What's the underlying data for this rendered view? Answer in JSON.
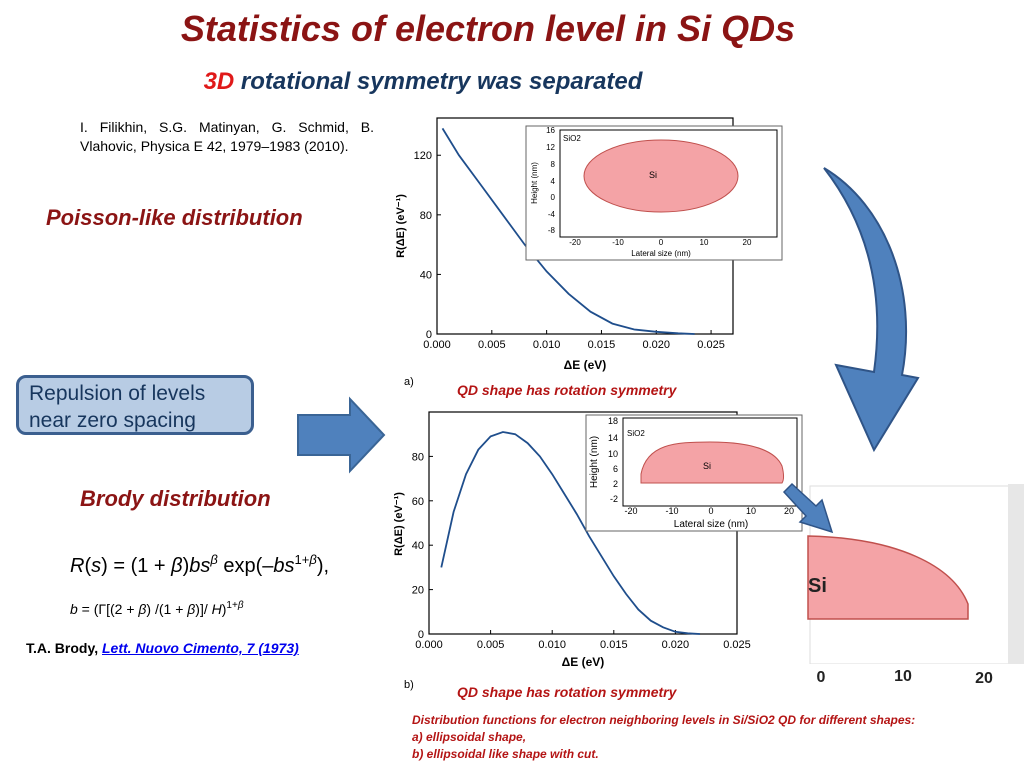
{
  "title": "Statistics of electron level in Si QDs",
  "subtitle": {
    "part1": "3D",
    "part2": "rotational symmetry  was separated"
  },
  "citation": "I. Filikhin, S.G. Matinyan, G. Schmid, B. Vlahovic, Physica E 42, 1979–1983 (2010).",
  "poisson_label": "Poisson-like distribution",
  "repulsion_label": "Repulsion of levels near zero spacing",
  "brody_label": "Brody distribution",
  "formula1": "R(s) = (1 + β)bs^β exp(–bs^(1+β)),",
  "formula2": "b = (Γ[(2 + β)/(1 + β)]/H)^(1+β)",
  "brody_ref": {
    "author": "T.A. Brody",
    "sep": ",  ",
    "link": "Lett. Nuovo Cimento, 7 (1973)"
  },
  "shape_note_a": "QD shape has rotation  symmetry",
  "shape_note_b": "QD shape has rotation  symmetry",
  "panel_a_label": "a)",
  "panel_b_label": "b)",
  "caption": {
    "line1": "Distribution functions for electron neighboring levels in Si/SiO2 QD for different shapes:",
    "line2": "a) ellipsoidal shape,",
    "line3": "b) ellipsoidal like shape with cut."
  },
  "colors": {
    "title": "#8b1414",
    "subtitle_3d": "#e01919",
    "subtitle_rest": "#17365d",
    "curve": "#1f4e8c",
    "qd_fill": "#f4a3a6",
    "qd_stroke": "#c0504d",
    "arrow": "#4f81bd"
  },
  "chart_data": [
    {
      "type": "line",
      "panel": "a",
      "xlabel": "ΔE  (eV)",
      "ylabel": "R(ΔE) (eV⁻¹)",
      "xlim": [
        0,
        0.027
      ],
      "ylim": [
        0,
        145
      ],
      "xticks": [
        "0.000",
        "0.005",
        "0.010",
        "0.015",
        "0.020",
        "0.025"
      ],
      "yticks": [
        "0",
        "40",
        "80",
        "120"
      ],
      "x": [
        0.0005,
        0.002,
        0.004,
        0.006,
        0.008,
        0.01,
        0.012,
        0.014,
        0.016,
        0.018,
        0.02,
        0.022,
        0.0235
      ],
      "y": [
        138,
        120,
        100,
        80,
        60,
        42,
        27,
        15,
        7,
        3,
        1.5,
        0.5,
        0
      ]
    },
    {
      "type": "line",
      "panel": "b",
      "xlabel": "ΔE  (eV)",
      "ylabel": "R(ΔE) (eV⁻¹)",
      "xlim": [
        0,
        0.025
      ],
      "ylim": [
        0,
        100
      ],
      "xticks": [
        "0.000",
        "0.005",
        "0.010",
        "0.015",
        "0.020",
        "0.025"
      ],
      "yticks": [
        "0",
        "20",
        "40",
        "60",
        "80"
      ],
      "x": [
        0.001,
        0.002,
        0.003,
        0.004,
        0.005,
        0.006,
        0.007,
        0.008,
        0.009,
        0.01,
        0.011,
        0.012,
        0.013,
        0.014,
        0.015,
        0.016,
        0.017,
        0.018,
        0.019,
        0.02,
        0.021,
        0.022
      ],
      "y": [
        30,
        55,
        72,
        83,
        89,
        91,
        90,
        86,
        80,
        72,
        63,
        54,
        44,
        35,
        26,
        18,
        11,
        6,
        3,
        1,
        0.3,
        0
      ]
    }
  ],
  "inset_a": {
    "ylabel": "Height (nm)",
    "xlabel": "Lateral size (nm)",
    "yticks": [
      "16",
      "12",
      "8",
      "4",
      "0",
      "-4",
      "-8"
    ],
    "xticks": [
      "-20",
      "-10",
      "0",
      "10",
      "20"
    ],
    "outer": "SiO2",
    "inner": "Si"
  },
  "inset_b": {
    "ylabel": "Height  (nm)",
    "xlabel": "Lateral size (nm)",
    "yticks": [
      "18",
      "14",
      "10",
      "6",
      "2",
      "-2"
    ],
    "xticks": [
      "-20",
      "-10",
      "0",
      "10",
      "20"
    ],
    "outer": "SiO2",
    "inner": "Si"
  },
  "zoom": {
    "label": "Si",
    "xticks": [
      "0",
      "10",
      "20"
    ]
  }
}
